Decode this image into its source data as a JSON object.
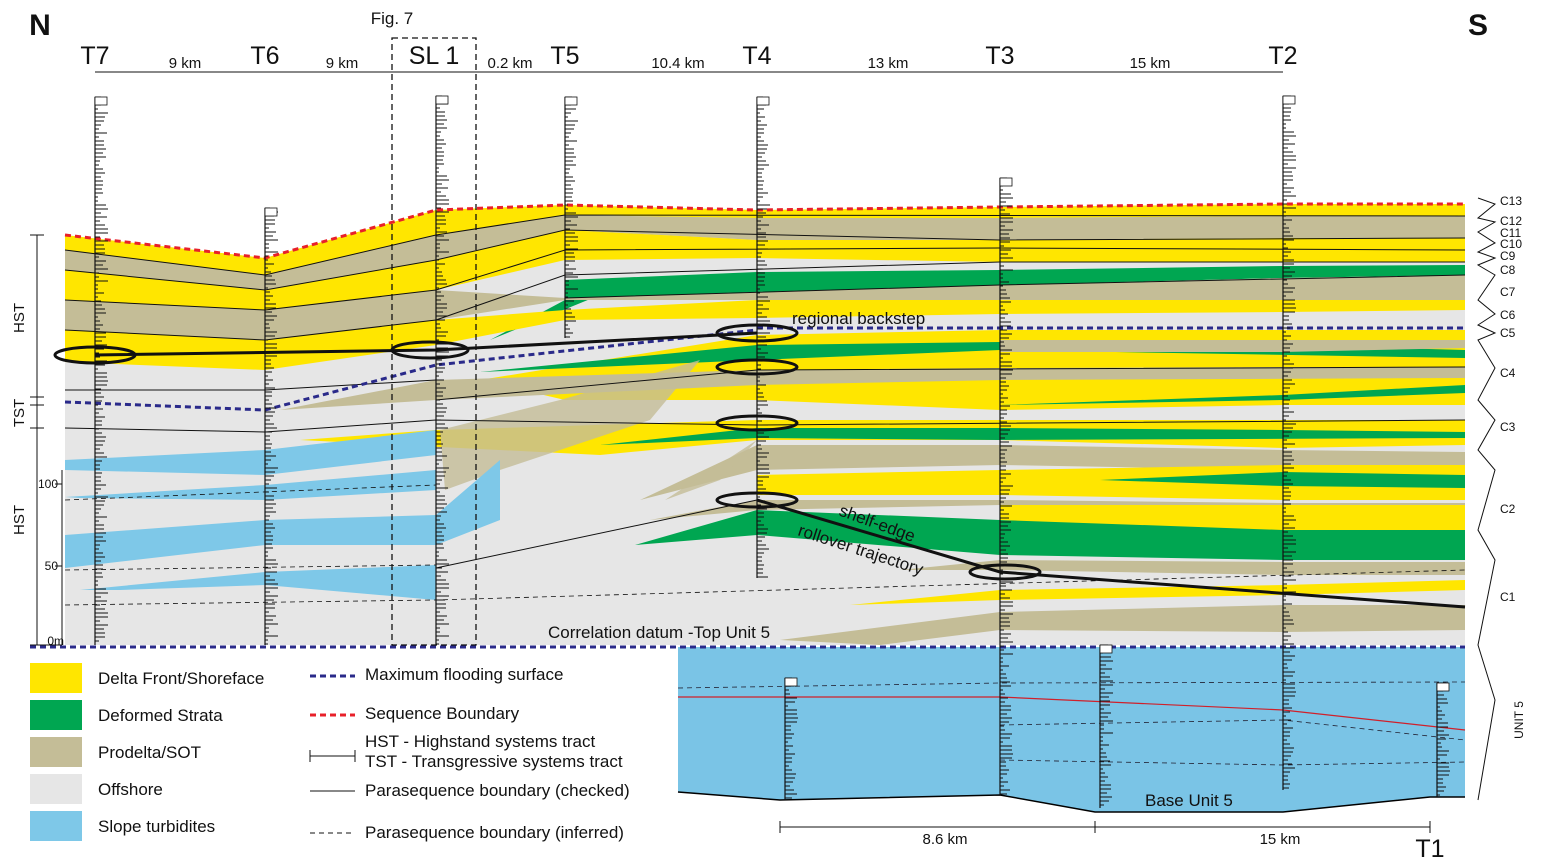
{
  "header": {
    "north": "N",
    "south": "S",
    "figure_ref": "Fig. 7"
  },
  "wells": [
    "T7",
    "T6",
    "SL 1",
    "T5",
    "T4",
    "T3",
    "T2",
    "T1"
  ],
  "distances": [
    "9 km",
    "9 km",
    "0.2 km",
    "10.4 km",
    "13 km",
    "15 km"
  ],
  "lower_distances": [
    "8.6 km",
    "15 km"
  ],
  "scale": {
    "labels": [
      "100",
      "50",
      "0m"
    ]
  },
  "systems_tracts": [
    "HST",
    "TST",
    "HST"
  ],
  "cycles": [
    "C13",
    "C12",
    "C11",
    "C10",
    "C9",
    "C8",
    "C7",
    "C6",
    "C5",
    "C4",
    "C3",
    "C2",
    "C1",
    "UNIT 5"
  ],
  "annotations": {
    "backstep": "regional backstep",
    "trajectory_1": "shelf-edge",
    "trajectory_2": "rollover trajectory",
    "datum": "Correlation datum -Top Unit 5",
    "base": "Base Unit 5"
  },
  "legend": {
    "facies": [
      "Delta Front/Shoreface",
      "Deformed Strata",
      "Prodelta/SOT",
      "Offshore",
      "Slope turbidites"
    ],
    "lines": [
      "Maximum flooding surface",
      "Sequence Boundary",
      "HST - Highstand systems tract",
      "TST - Transgressive systems tract",
      "Parasequence boundary (checked)",
      "Parasequence boundary (inferred)"
    ]
  }
}
